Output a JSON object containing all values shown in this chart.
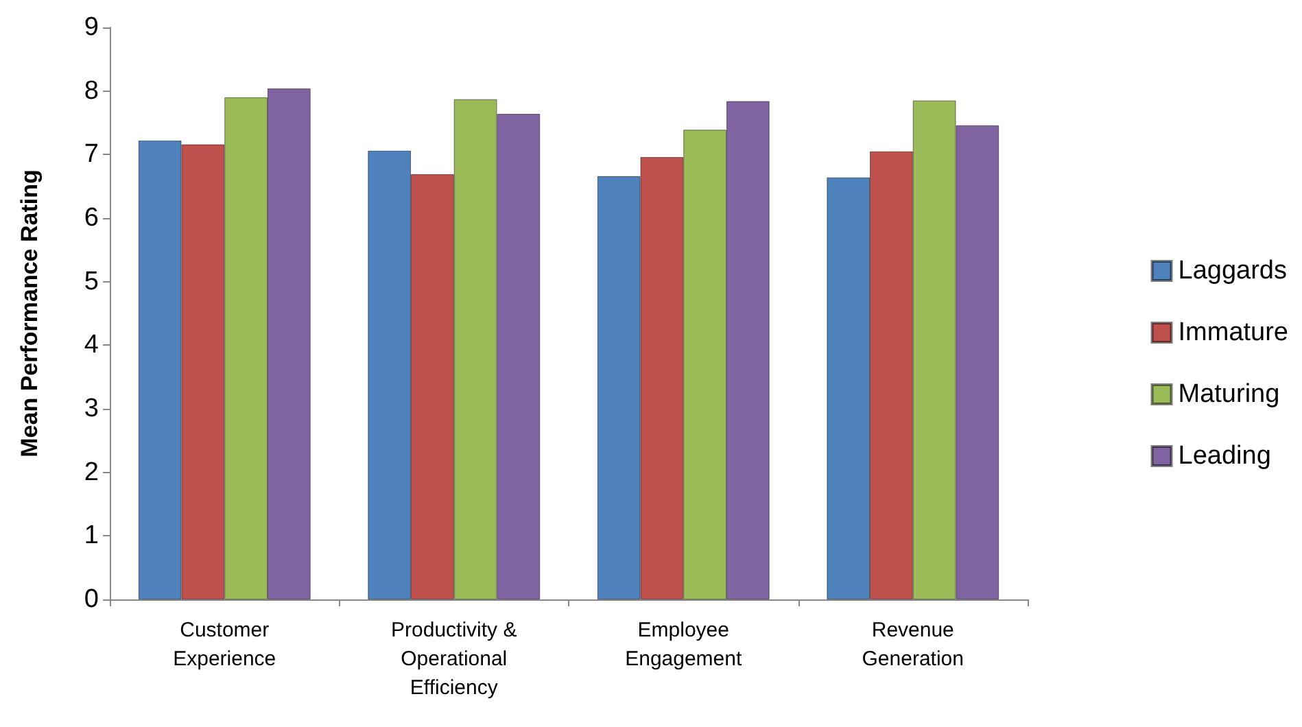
{
  "chart_data": {
    "type": "bar",
    "ylabel": "Mean Performance Rating",
    "categories": [
      "Customer\nExperience",
      "Productivity &\nOperational\nEfficiency",
      "Employee\nEngagement",
      "Revenue\nGeneration"
    ],
    "series": [
      {
        "name": "Laggards",
        "color": "#4f81bd",
        "values": [
          7.22,
          7.06,
          6.66,
          6.64
        ]
      },
      {
        "name": "Immature",
        "color": "#c0504d",
        "values": [
          7.16,
          6.69,
          6.96,
          7.05
        ]
      },
      {
        "name": "Maturing",
        "color": "#9bbb59",
        "values": [
          7.9,
          7.87,
          7.39,
          7.85
        ]
      },
      {
        "name": "Leading",
        "color": "#8064a2",
        "values": [
          8.04,
          7.64,
          7.84,
          7.46
        ]
      }
    ],
    "ylim": [
      0,
      9
    ],
    "yticks": [
      0,
      1,
      2,
      3,
      4,
      5,
      6,
      7,
      8,
      9
    ],
    "grid": false,
    "legend": "right"
  }
}
